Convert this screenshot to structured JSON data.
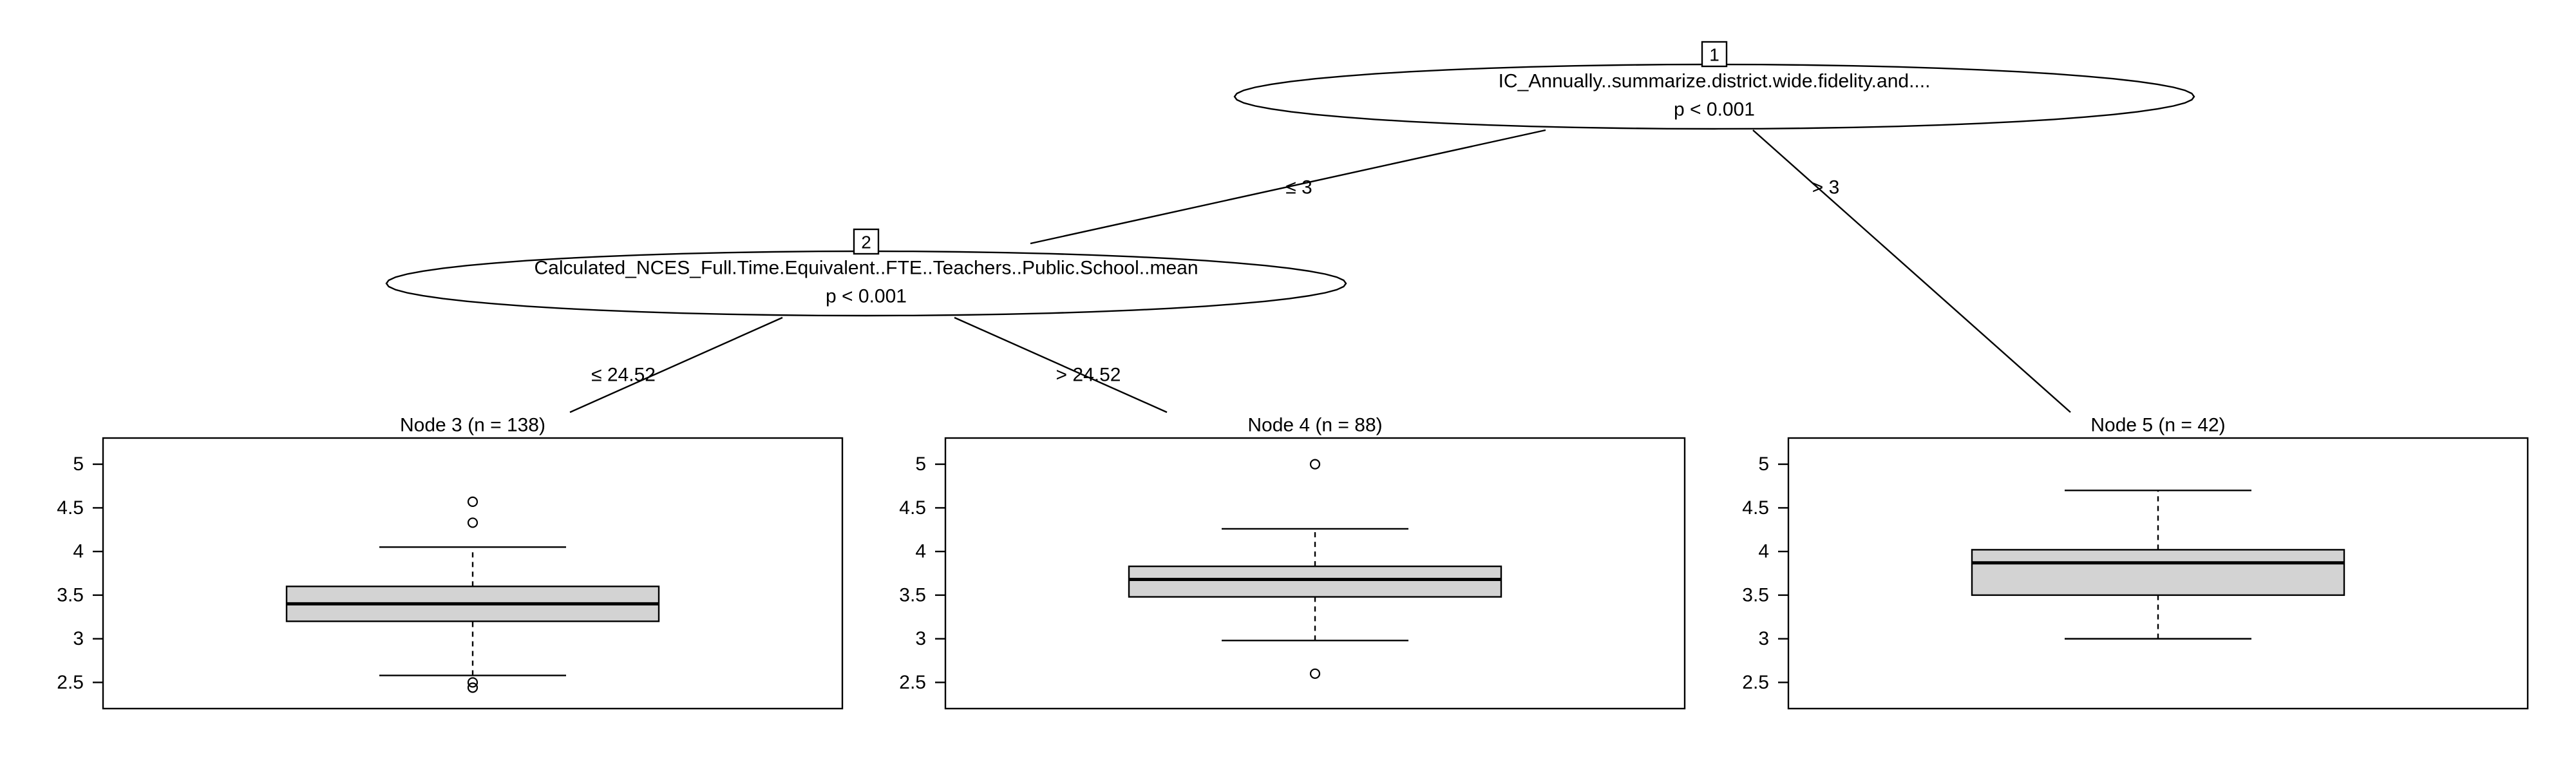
{
  "chart_data": {
    "type": "ctree",
    "inner_nodes": [
      {
        "id": 1,
        "id_label": "1",
        "variable": "IC_Annually..summarize.district.wide.fidelity.and....",
        "p_value": "p < 0.001"
      },
      {
        "id": 2,
        "id_label": "2",
        "variable": "Calculated_NCES_Full.Time.Equivalent..FTE..Teachers..Public.School..mean",
        "p_value": "p < 0.001"
      }
    ],
    "edges": [
      {
        "from": 1,
        "to": 2,
        "label": "≤ 3"
      },
      {
        "from": 1,
        "to": 5,
        "label": "> 3"
      },
      {
        "from": 2,
        "to": 3,
        "label": "≤ 24.52"
      },
      {
        "from": 2,
        "to": 4,
        "label": "> 24.52"
      }
    ],
    "terminal_nodes": [
      {
        "id": 3,
        "title": "Node 3 (n = 138)",
        "box": {
          "whisker_low": 2.58,
          "q1": 3.2,
          "median": 3.4,
          "q3": 3.6,
          "whisker_high": 4.05
        },
        "outliers": [
          4.57,
          4.33,
          2.5,
          2.44
        ]
      },
      {
        "id": 4,
        "title": "Node 4 (n = 88)",
        "box": {
          "whisker_low": 2.98,
          "q1": 3.48,
          "median": 3.68,
          "q3": 3.83,
          "whisker_high": 4.26
        },
        "outliers": [
          5.0,
          2.6
        ]
      },
      {
        "id": 5,
        "title": "Node 5 (n = 42)",
        "box": {
          "whisker_low": 3.0,
          "q1": 3.5,
          "median": 3.87,
          "q3": 4.02,
          "whisker_high": 4.7
        },
        "outliers": []
      }
    ],
    "y_axis": {
      "ylim": [
        2.2,
        5.3
      ],
      "ticks": [
        2.5,
        3,
        3.5,
        4,
        4.5,
        5
      ],
      "tick_labels": [
        "2.5",
        "3",
        "3.5",
        "4",
        "4.5",
        "5"
      ]
    },
    "box_fill": "#d3d3d3",
    "line_color": "#000000"
  }
}
